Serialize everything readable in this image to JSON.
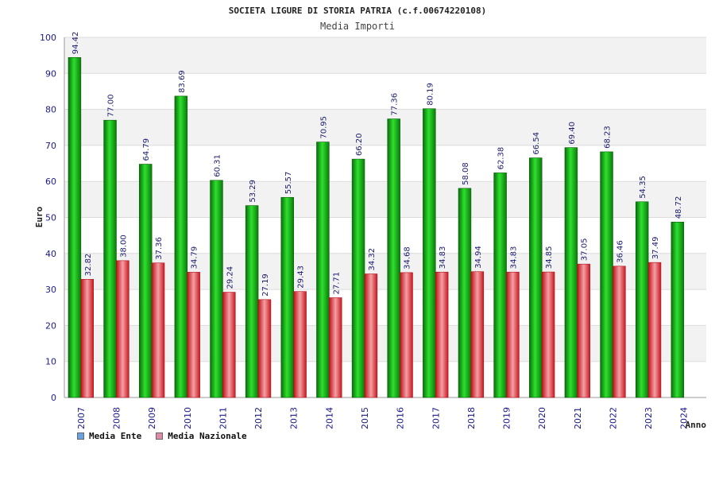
{
  "chart_data": {
    "type": "bar",
    "title": "SOCIETA LIGURE DI STORIA PATRIA (c.f.00674220108)",
    "subtitle": "Media Importi",
    "ylabel": "Euro",
    "xlabel": "Anno",
    "ylim": [
      0,
      100
    ],
    "yticks": [
      0,
      10,
      20,
      30,
      40,
      50,
      60,
      70,
      80,
      90,
      100
    ],
    "grid": "horizontal bands",
    "legend_position": "bottom-left",
    "categories": [
      "2007",
      "2008",
      "2009",
      "2010",
      "2011",
      "2012",
      "2013",
      "2014",
      "2015",
      "2016",
      "2017",
      "2018",
      "2019",
      "2020",
      "2021",
      "2022",
      "2023",
      "2024"
    ],
    "series": [
      {
        "name": "Media Ente",
        "color": "#16a616",
        "legend_color": "#66a3e0",
        "values": [
          94.42,
          77.0,
          64.79,
          83.69,
          60.31,
          53.29,
          55.57,
          70.95,
          66.2,
          77.36,
          80.19,
          58.08,
          62.38,
          66.54,
          69.4,
          68.23,
          54.35,
          48.72
        ],
        "labels": [
          "94.42",
          "77.00",
          "64.79",
          "83.69",
          "60.31",
          "53.29",
          "55.57",
          "70.95",
          "66.20",
          "77.36",
          "80.19",
          "58.08",
          "62.38",
          "66.54",
          "69.40",
          "68.23",
          "54.35",
          "48.72"
        ]
      },
      {
        "name": "Media Nazionale",
        "color": "#e8262e",
        "legend_color": "#e08aa8",
        "values": [
          32.82,
          38.0,
          37.36,
          34.79,
          29.24,
          27.19,
          29.43,
          27.71,
          34.32,
          34.68,
          34.83,
          34.94,
          34.83,
          34.85,
          37.05,
          36.46,
          37.49,
          null
        ],
        "labels": [
          "32.82",
          "38.00",
          "37.36",
          "34.79",
          "29.24",
          "27.19",
          "29.43",
          "27.71",
          "34.32",
          "34.68",
          "34.83",
          "34.94",
          "34.83",
          "34.85",
          "37.05",
          "36.46",
          "37.49",
          ""
        ]
      }
    ]
  }
}
